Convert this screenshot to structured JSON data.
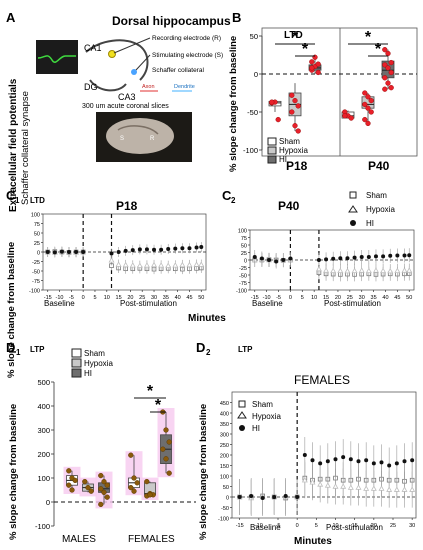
{
  "panel_a": {
    "letter": "A",
    "title": "Dorsal hippocampus",
    "side_label_1": "Extracellular field potentials",
    "side_label_2": "Schaffer collateral synapse",
    "label_ca1": "CA1",
    "label_ca3": "CA3",
    "label_dg": "DG",
    "label_recording": "Recording electrode (R)",
    "label_stimulating": "Stimulating electrode (S)",
    "label_schaffer": "Schaffer collateral",
    "label_axon": "Axon",
    "label_dendrite": "Dendrite",
    "caption_slices": "300 um acute coronal slices",
    "slice_letters": [
      "S",
      "R"
    ]
  },
  "legend": {
    "sham": "Sham",
    "hypoxia": "Hypoxia",
    "hi": "HI"
  },
  "significance_mark": "*",
  "colors": {
    "sham_box": "#ffffff",
    "hypoxia_box": "#c9c9c9",
    "hi_box": "#6e6e6e",
    "points_red": "#e8202a",
    "points_brown": "#8a5a0b",
    "highlight_pink": "#f6c9ef",
    "hi_trace": "#111111",
    "hypoxia_trace": "#bdbdbd",
    "sham_trace": "#7a7a7a"
  },
  "chart_data": [
    {
      "panel": "B",
      "type": "box",
      "title": "LTD",
      "ylabel": "% slope change from baseline",
      "ylim": [
        -100,
        50
      ],
      "yticks": [
        -100,
        -50,
        0,
        50
      ],
      "groups": [
        {
          "label": "P18",
          "boxes": [
            {
              "name": "Sham",
              "min": -50,
              "q1": -42,
              "median": -38,
              "q3": -36,
              "max": -36,
              "points": [
                -38,
                -37,
                -60,
                -37
              ]
            },
            {
              "name": "Hypoxia",
              "min": -75,
              "q1": -55,
              "median": -40,
              "q3": -25,
              "max": -12,
              "points": [
                -28,
                -35,
                -42,
                -50,
                -68,
                -75
              ]
            },
            {
              "name": "HI",
              "min": 0,
              "q1": 5,
              "median": 8,
              "q3": 12,
              "max": 22,
              "points": [
                5,
                10,
                13,
                16,
                22,
                2,
                8
              ]
            }
          ]
        },
        {
          "label": "P40",
          "boxes": [
            {
              "name": "Sham",
              "min": -58,
              "q1": -58,
              "median": -55,
              "q3": -50,
              "max": -48,
              "points": [
                -50,
                -55,
                -58,
                -55
              ]
            },
            {
              "name": "Hypoxia",
              "min": -65,
              "q1": -45,
              "median": -40,
              "q3": -30,
              "max": -25,
              "points": [
                -25,
                -30,
                -35,
                -40,
                -45,
                -50,
                -60,
                -65
              ]
            },
            {
              "name": "HI",
              "min": -20,
              "q1": -5,
              "median": 5,
              "q3": 17,
              "max": 32,
              "points": [
                32,
                27,
                15,
                12,
                8,
                2,
                -5,
                -12,
                -18,
                -20
              ]
            }
          ]
        }
      ],
      "significance": [
        {
          "group": "P18",
          "from": "Sham",
          "to": "HI",
          "mark": "*"
        },
        {
          "group": "P18",
          "from": "Hypoxia",
          "to": "HI",
          "mark": "*"
        },
        {
          "group": "P40",
          "from": "Sham",
          "to": "HI",
          "mark": "*"
        },
        {
          "group": "P40",
          "from": "Hypoxia",
          "to": "HI",
          "mark": "*"
        }
      ]
    },
    {
      "panel": "C1",
      "type": "line",
      "protocol": "LTD",
      "title": "P18",
      "ylabel": "% slope change from baseline",
      "xlabel": "Minutes",
      "ylim": [
        -100,
        100
      ],
      "yticks": [
        -100,
        -75,
        -50,
        -25,
        0,
        25,
        50,
        75,
        100
      ],
      "xticks": [
        -15,
        -10,
        -5,
        0,
        5,
        10,
        15,
        20,
        25,
        30,
        35,
        40,
        45,
        50
      ],
      "baseline_label": "Baseline",
      "post_label": "Post-stimulation",
      "series": [
        {
          "name": "HI",
          "x": [
            -15,
            -12,
            -9,
            -6,
            -3,
            0,
            12,
            15,
            18,
            21,
            24,
            27,
            30,
            33,
            36,
            39,
            42,
            45,
            48,
            50
          ],
          "y": [
            0,
            -1,
            1,
            0,
            0,
            0,
            -4,
            0,
            3,
            5,
            7,
            7,
            6,
            6,
            8,
            9,
            10,
            10,
            12,
            13
          ]
        },
        {
          "name": "Hypoxia",
          "x": [
            -15,
            -12,
            -9,
            -6,
            -3,
            0,
            12,
            15,
            18,
            21,
            24,
            27,
            30,
            33,
            36,
            39,
            42,
            45,
            48,
            50
          ],
          "y": [
            0,
            -1,
            1,
            0,
            -1,
            0,
            -22,
            -33,
            -34,
            -35,
            -36,
            -35,
            -34,
            -35,
            -36,
            -35,
            -34,
            -34,
            -33,
            -33
          ]
        },
        {
          "name": "Sham",
          "x": [
            -15,
            -12,
            -9,
            -6,
            -3,
            0,
            12,
            15,
            18,
            21,
            24,
            27,
            30,
            33,
            36,
            39,
            42,
            45,
            48,
            50
          ],
          "y": [
            0,
            1,
            0,
            -1,
            0,
            0,
            -36,
            -42,
            -44,
            -44,
            -43,
            -44,
            -45,
            -44,
            -43,
            -44,
            -45,
            -44,
            -43,
            -42
          ]
        }
      ]
    },
    {
      "panel": "C2",
      "type": "line",
      "protocol": "",
      "title": "P40",
      "ylabel": "",
      "xlabel": "",
      "ylim": [
        -100,
        100
      ],
      "yticks": [
        -100,
        -75,
        -50,
        -25,
        0,
        25,
        50,
        75,
        100
      ],
      "xticks": [
        -15,
        -10,
        -5,
        0,
        5,
        10,
        15,
        20,
        25,
        30,
        35,
        40,
        45,
        50
      ],
      "baseline_label": "Baseline",
      "post_label": "Post-stimulation",
      "series": [
        {
          "name": "HI",
          "x": [
            -15,
            -12,
            -9,
            -6,
            -3,
            0,
            12,
            15,
            18,
            21,
            24,
            27,
            30,
            33,
            36,
            39,
            42,
            45,
            48,
            50
          ],
          "y": [
            10,
            5,
            0,
            -5,
            0,
            5,
            0,
            2,
            4,
            6,
            6,
            8,
            10,
            10,
            12,
            12,
            14,
            15,
            15,
            16
          ]
        },
        {
          "name": "Hypoxia",
          "x": [
            -15,
            -12,
            -9,
            -6,
            -3,
            0,
            12,
            15,
            18,
            21,
            24,
            27,
            30,
            33,
            36,
            39,
            42,
            45,
            48,
            50
          ],
          "y": [
            0,
            1,
            0,
            -1,
            0,
            0,
            -30,
            -35,
            -36,
            -36,
            -37,
            -36,
            -35,
            -36,
            -35,
            -36,
            -37,
            -36,
            -35,
            -35
          ]
        },
        {
          "name": "Sham",
          "x": [
            -15,
            -12,
            -9,
            -6,
            -3,
            0,
            12,
            15,
            18,
            21,
            24,
            27,
            30,
            33,
            36,
            39,
            42,
            45,
            48,
            50
          ],
          "y": [
            0,
            0,
            1,
            0,
            -1,
            0,
            -42,
            -46,
            -47,
            -48,
            -47,
            -48,
            -47,
            -46,
            -48,
            -47,
            -46,
            -47,
            -46,
            -45
          ]
        }
      ]
    },
    {
      "panel": "D1",
      "type": "box",
      "title": "LTP",
      "ylabel": "% slope change from baseline",
      "ylim": [
        -100,
        500
      ],
      "yticks": [
        -100,
        0,
        100,
        200,
        300,
        400,
        500
      ],
      "groups": [
        {
          "label": "MALES",
          "boxes": [
            {
              "name": "Sham",
              "min": 50,
              "q1": 70,
              "median": 90,
              "q3": 110,
              "max": 130,
              "points": [
                130,
                100,
                90,
                70,
                50
              ]
            },
            {
              "name": "Hypoxia",
              "min": 40,
              "q1": 45,
              "median": 60,
              "q3": 75,
              "max": 85,
              "points": [
                85,
                60,
                45
              ]
            },
            {
              "name": "HI",
              "min": -10,
              "q1": 40,
              "median": 55,
              "q3": 80,
              "max": 110,
              "points": [
                110,
                85,
                70,
                55,
                40,
                20,
                -10
              ]
            }
          ]
        },
        {
          "label": "FEMALES",
          "boxes": [
            {
              "name": "Sham",
              "min": 45,
              "q1": 60,
              "median": 80,
              "q3": 100,
              "max": 195,
              "points": [
                195,
                100,
                80,
                60,
                45
              ]
            },
            {
              "name": "Hypoxia",
              "min": 25,
              "q1": 30,
              "median": 35,
              "q3": 80,
              "max": 85,
              "points": [
                85,
                35,
                30,
                25,
                30
              ]
            },
            {
              "name": "HI",
              "min": 120,
              "q1": 160,
              "median": 220,
              "q3": 280,
              "max": 375,
              "points": [
                375,
                300,
                250,
                220,
                180,
                120
              ]
            }
          ]
        }
      ],
      "significance": [
        {
          "group": "FEMALES",
          "from": "Sham",
          "to": "HI",
          "mark": "*"
        },
        {
          "group": "FEMALES",
          "from": "Hypoxia",
          "to": "HI",
          "mark": "*"
        }
      ]
    },
    {
      "panel": "D2",
      "type": "line",
      "protocol": "LTP",
      "title": "FEMALES",
      "ylabel": "% slope change from baseline",
      "xlabel": "Minutes",
      "ylim": [
        -100,
        500
      ],
      "yticks": [
        -100,
        -50,
        0,
        50,
        100,
        150,
        200,
        250,
        300,
        350,
        400,
        450
      ],
      "xticks": [
        -15,
        -10,
        -5,
        0,
        5,
        10,
        15,
        20,
        25,
        30
      ],
      "baseline_label": "Baseline",
      "post_label": "Post-stimulation",
      "series": [
        {
          "name": "HI",
          "x": [
            -15,
            -12,
            -9,
            -6,
            -3,
            0,
            2,
            4,
            6,
            8,
            10,
            12,
            14,
            16,
            18,
            20,
            22,
            24,
            26,
            28,
            30
          ],
          "y": [
            0,
            5,
            -5,
            0,
            5,
            0,
            200,
            175,
            160,
            170,
            180,
            190,
            180,
            170,
            175,
            160,
            165,
            150,
            160,
            170,
            175
          ]
        },
        {
          "name": "Hypoxia",
          "x": [
            -15,
            -12,
            -9,
            -6,
            -3,
            0,
            2,
            4,
            6,
            8,
            10,
            12,
            14,
            16,
            18,
            20,
            22,
            24,
            26,
            28,
            30
          ],
          "y": [
            0,
            -5,
            0,
            5,
            0,
            0,
            80,
            70,
            60,
            55,
            50,
            50,
            45,
            45,
            40,
            40,
            40,
            35,
            35,
            35,
            35
          ]
        },
        {
          "name": "Sham",
          "x": [
            -15,
            -12,
            -9,
            -6,
            -3,
            0,
            2,
            4,
            6,
            8,
            10,
            12,
            14,
            16,
            18,
            20,
            22,
            24,
            26,
            28,
            30
          ],
          "y": [
            0,
            0,
            5,
            0,
            -5,
            0,
            90,
            80,
            85,
            85,
            90,
            80,
            80,
            85,
            80,
            80,
            85,
            80,
            80,
            75,
            80
          ]
        }
      ]
    }
  ]
}
